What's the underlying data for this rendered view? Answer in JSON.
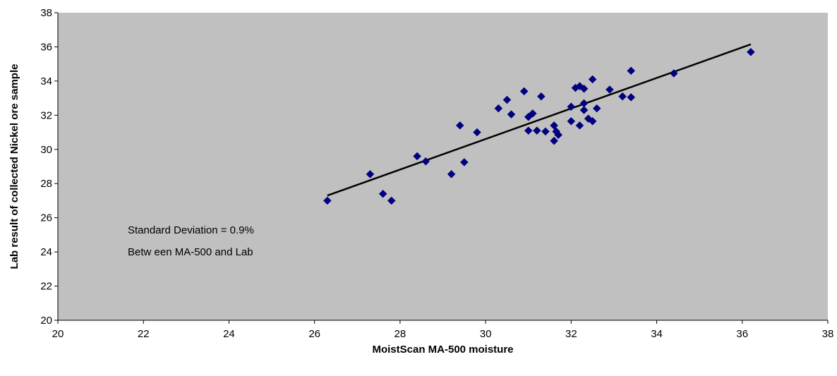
{
  "chart_data": {
    "type": "scatter",
    "xlabel": "MoistScan MA-500 moisture",
    "ylabel": "Lab result of collected Nickel ore sample",
    "xlim": [
      20,
      38
    ],
    "ylim": [
      20,
      38
    ],
    "xticks": [
      "20",
      "22",
      "24",
      "26",
      "28",
      "30",
      "32",
      "34",
      "36",
      "38"
    ],
    "yticks": [
      "20",
      "22",
      "24",
      "26",
      "28",
      "30",
      "32",
      "34",
      "36",
      "38"
    ],
    "grid": false,
    "plot_background": "#c0c0c0",
    "marker_color": "#000080",
    "trendline_color": "#000000",
    "annotation_lines": [
      "Standard Deviation = 0.9%",
      "Betw een MA-500 and Lab"
    ],
    "trendline": {
      "x": [
        26.3,
        36.2
      ],
      "y": [
        27.3,
        36.15
      ]
    },
    "points": [
      [
        26.3,
        27.0
      ],
      [
        27.3,
        28.55
      ],
      [
        27.6,
        27.4
      ],
      [
        27.8,
        27.0
      ],
      [
        28.4,
        29.6
      ],
      [
        28.6,
        29.3
      ],
      [
        29.2,
        28.55
      ],
      [
        29.4,
        31.4
      ],
      [
        29.5,
        29.25
      ],
      [
        29.8,
        31.0
      ],
      [
        30.3,
        32.4
      ],
      [
        30.5,
        32.9
      ],
      [
        30.6,
        32.05
      ],
      [
        30.9,
        33.4
      ],
      [
        31.0,
        31.1
      ],
      [
        31.0,
        31.9
      ],
      [
        31.1,
        32.1
      ],
      [
        31.2,
        31.1
      ],
      [
        31.3,
        33.1
      ],
      [
        31.4,
        31.05
      ],
      [
        31.6,
        31.4
      ],
      [
        31.6,
        30.5
      ],
      [
        31.65,
        31.05
      ],
      [
        31.7,
        30.85
      ],
      [
        32.0,
        32.5
      ],
      [
        32.0,
        31.65
      ],
      [
        32.1,
        33.6
      ],
      [
        32.2,
        33.7
      ],
      [
        32.2,
        31.4
      ],
      [
        32.3,
        33.55
      ],
      [
        32.3,
        32.7
      ],
      [
        32.3,
        32.3
      ],
      [
        32.4,
        31.8
      ],
      [
        32.5,
        34.1
      ],
      [
        32.5,
        31.65
      ],
      [
        32.6,
        32.4
      ],
      [
        32.9,
        33.5
      ],
      [
        33.2,
        33.1
      ],
      [
        33.4,
        34.6
      ],
      [
        33.4,
        33.05
      ],
      [
        34.4,
        34.45
      ],
      [
        36.2,
        35.7
      ]
    ]
  }
}
